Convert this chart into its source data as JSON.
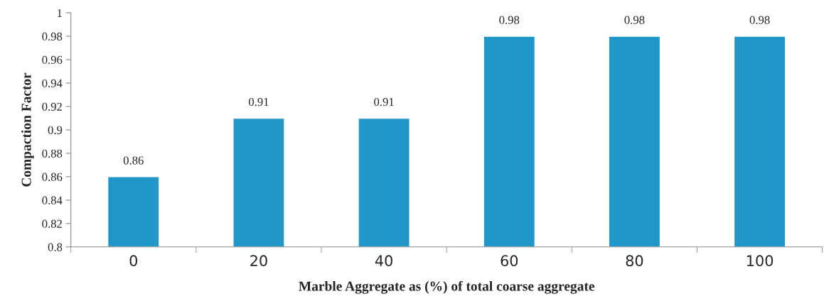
{
  "chart_data": {
    "type": "bar",
    "xlabel": "Marble Aggregate as (%) of total coarse aggregate",
    "ylabel": "Compaction Factor",
    "categories": [
      "0",
      "20",
      "40",
      "60",
      "80",
      "100"
    ],
    "values": [
      0.86,
      0.91,
      0.91,
      0.98,
      0.98,
      0.98
    ],
    "color": "#2196c9",
    "ylim": [
      0.8,
      1
    ],
    "yticks": [
      0.8,
      0.82,
      0.84,
      0.86,
      0.88,
      0.9,
      0.92,
      0.94,
      0.96,
      0.98,
      1
    ],
    "data_labels": true
  }
}
